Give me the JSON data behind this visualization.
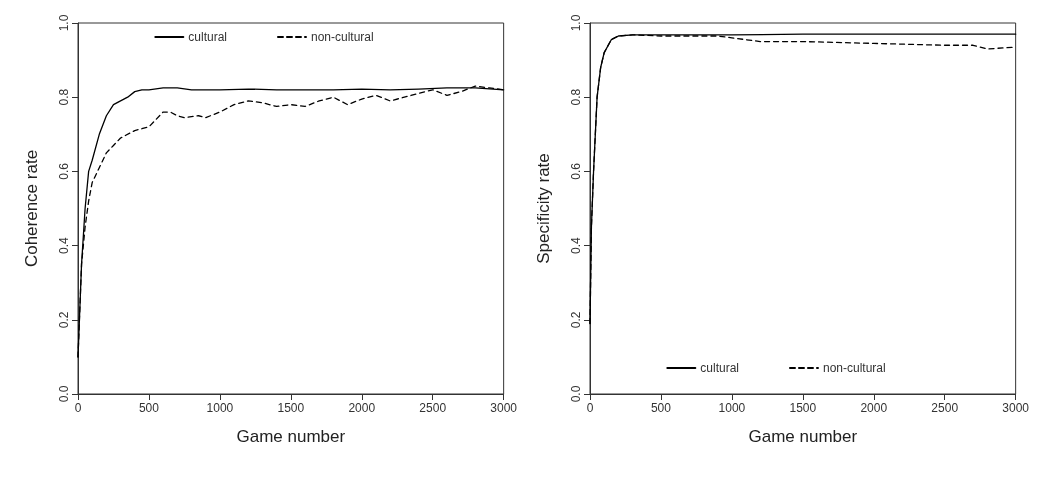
{
  "chart_data": [
    {
      "type": "line",
      "xlabel": "Game number",
      "ylabel": "Coherence rate",
      "xlim": [
        0,
        3000
      ],
      "ylim": [
        0,
        1
      ],
      "xticks": [
        0,
        500,
        1000,
        1500,
        2000,
        2500,
        3000
      ],
      "yticks": [
        {
          "value": 0,
          "label": "0.0"
        },
        {
          "value": 0.2,
          "label": "0.2"
        },
        {
          "value": 0.4,
          "label": "0.4"
        },
        {
          "value": 0.6,
          "label": "0.6"
        },
        {
          "value": 0.8,
          "label": "0.8"
        },
        {
          "value": 1,
          "label": "1.0"
        }
      ],
      "grid": false,
      "legend": "top",
      "marker": "none",
      "series": [
        {
          "name": "cultural",
          "color": "#000000",
          "line_style": "solid",
          "x": [
            0,
            10,
            25,
            50,
            75,
            100,
            150,
            200,
            250,
            300,
            350,
            400,
            450,
            500,
            600,
            700,
            800,
            900,
            1000,
            1200,
            1400,
            1600,
            1800,
            2000,
            2200,
            2400,
            2600,
            2800,
            3000
          ],
          "values": [
            0.1,
            0.2,
            0.35,
            0.5,
            0.6,
            0.63,
            0.7,
            0.75,
            0.78,
            0.79,
            0.8,
            0.815,
            0.82,
            0.82,
            0.825,
            0.825,
            0.82,
            0.82,
            0.82,
            0.822,
            0.82,
            0.82,
            0.82,
            0.822,
            0.82,
            0.822,
            0.825,
            0.825,
            0.82
          ]
        },
        {
          "name": "non-cultural",
          "color": "#000000",
          "line_style": "dashed",
          "x": [
            0,
            10,
            25,
            50,
            75,
            100,
            150,
            200,
            250,
            300,
            400,
            500,
            550,
            600,
            650,
            700,
            750,
            850,
            900,
            1000,
            1100,
            1200,
            1300,
            1400,
            1500,
            1600,
            1700,
            1800,
            1900,
            2000,
            2100,
            2200,
            2300,
            2400,
            2500,
            2600,
            2700,
            2800,
            2900,
            3000
          ],
          "values": [
            0.1,
            0.2,
            0.35,
            0.45,
            0.52,
            0.57,
            0.61,
            0.65,
            0.67,
            0.69,
            0.71,
            0.72,
            0.74,
            0.76,
            0.76,
            0.75,
            0.745,
            0.75,
            0.745,
            0.76,
            0.78,
            0.79,
            0.785,
            0.775,
            0.78,
            0.775,
            0.79,
            0.8,
            0.78,
            0.795,
            0.805,
            0.79,
            0.8,
            0.81,
            0.82,
            0.805,
            0.815,
            0.83,
            0.825,
            0.82
          ]
        }
      ]
    },
    {
      "type": "line",
      "xlabel": "Game number",
      "ylabel": "Specificity rate",
      "xlim": [
        0,
        3000
      ],
      "ylim": [
        0,
        1
      ],
      "xticks": [
        0,
        500,
        1000,
        1500,
        2000,
        2500,
        3000
      ],
      "yticks": [
        {
          "value": 0,
          "label": "0.0"
        },
        {
          "value": 0.2,
          "label": "0.2"
        },
        {
          "value": 0.4,
          "label": "0.4"
        },
        {
          "value": 0.6,
          "label": "0.6"
        },
        {
          "value": 0.8,
          "label": "0.8"
        },
        {
          "value": 1,
          "label": "1.0"
        }
      ],
      "grid": false,
      "legend": "bottom",
      "marker": "none",
      "series": [
        {
          "name": "cultural",
          "color": "#000000",
          "line_style": "solid",
          "x": [
            0,
            10,
            25,
            50,
            75,
            100,
            150,
            200,
            300,
            500,
            1000,
            1500,
            2000,
            2500,
            3000
          ],
          "values": [
            0.19,
            0.45,
            0.6,
            0.8,
            0.88,
            0.92,
            0.955,
            0.965,
            0.968,
            0.968,
            0.968,
            0.97,
            0.97,
            0.97,
            0.97
          ]
        },
        {
          "name": "non-cultural",
          "color": "#000000",
          "line_style": "dashed",
          "x": [
            0,
            10,
            25,
            50,
            75,
            100,
            150,
            200,
            300,
            500,
            900,
            1000,
            1200,
            1500,
            2000,
            2500,
            2700,
            2800,
            3000
          ],
          "values": [
            0.19,
            0.45,
            0.6,
            0.8,
            0.88,
            0.92,
            0.955,
            0.965,
            0.968,
            0.965,
            0.965,
            0.96,
            0.95,
            0.95,
            0.945,
            0.94,
            0.94,
            0.93,
            0.935
          ]
        }
      ]
    }
  ]
}
